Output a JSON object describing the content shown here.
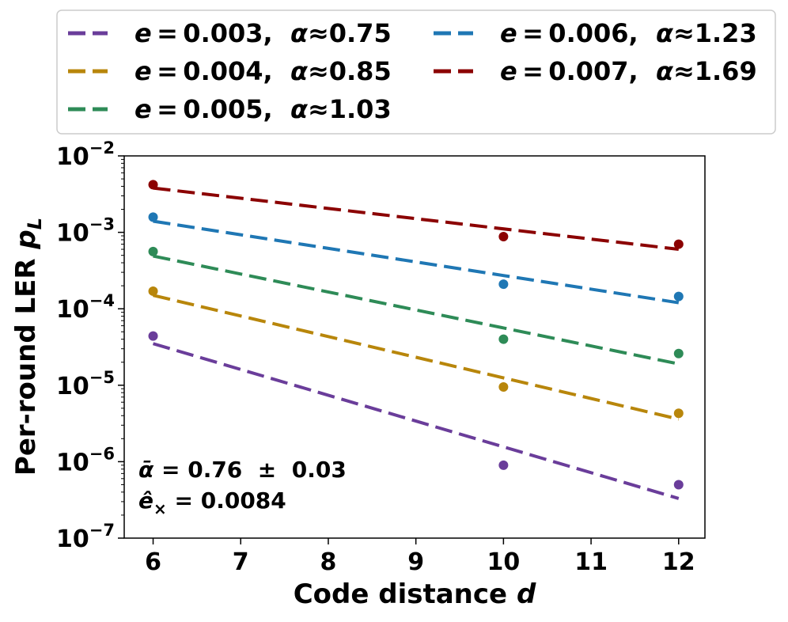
{
  "chart_data": {
    "type": "scatter",
    "xlabel": {
      "text": "Code distance ",
      "var": "d"
    },
    "ylabel": {
      "text": "Per-round LER ",
      "var": "p",
      "sub": "L"
    },
    "xlim": [
      5.67,
      12.3
    ],
    "ylim": [
      1e-07,
      0.01
    ],
    "yscale": "log",
    "x_ticks": [
      "6",
      "7",
      "8",
      "9",
      "10",
      "11",
      "12"
    ],
    "x_tick_values": [
      6,
      7,
      8,
      9,
      10,
      11,
      12
    ],
    "y_ticks": [
      {
        "base": "10",
        "exp": "−2",
        "value": 0.01
      },
      {
        "base": "10",
        "exp": "−3",
        "value": 0.001
      },
      {
        "base": "10",
        "exp": "−4",
        "value": 0.0001
      },
      {
        "base": "10",
        "exp": "−5",
        "value": 1e-05
      },
      {
        "base": "10",
        "exp": "−6",
        "value": 1e-06
      },
      {
        "base": "10",
        "exp": "−7",
        "value": 1e-07
      }
    ],
    "grid": false,
    "legend_position": "top (outside, above axes)",
    "series": [
      {
        "name": "e = 0.003, α≈0.75",
        "e_label": "e",
        "e_value": "0.003",
        "alpha_label": "α",
        "alpha_value": "0.75",
        "color": "#6a3d9a",
        "x": [
          6,
          10,
          12
        ],
        "points": [
          4.4e-05,
          9e-07,
          5e-07
        ],
        "fit": [
          3.5e-05,
          3.3e-07
        ]
      },
      {
        "name": "e = 0.004, α≈0.85",
        "e_label": "e",
        "e_value": "0.004",
        "alpha_label": "α",
        "alpha_value": "0.85",
        "color": "#b8860b",
        "x": [
          6,
          10,
          12
        ],
        "points": [
          0.00017,
          9.5e-06,
          4.3e-06
        ],
        "fit": [
          0.00015,
          3.6e-06
        ]
      },
      {
        "name": "e = 0.005, α≈1.03",
        "e_label": "e",
        "e_value": "0.005",
        "alpha_label": "α",
        "alpha_value": "1.03",
        "color": "#2e8b57",
        "x": [
          6,
          10,
          12
        ],
        "points": [
          0.00056,
          4e-05,
          2.6e-05
        ],
        "fit": [
          0.00049,
          1.9e-05
        ]
      },
      {
        "name": "e = 0.006, α≈1.23",
        "e_label": "e",
        "e_value": "0.006",
        "alpha_label": "α",
        "alpha_value": "1.23",
        "color": "#1f77b4",
        "x": [
          6,
          10,
          12
        ],
        "points": [
          0.00158,
          0.00021,
          0.000145
        ],
        "fit": [
          0.0014,
          0.00012
        ]
      },
      {
        "name": "e = 0.007, α≈1.69",
        "e_label": "e",
        "e_value": "0.007",
        "alpha_label": "α",
        "alpha_value": "1.69",
        "color": "#8b0000",
        "x": [
          6,
          10,
          12
        ],
        "points": [
          0.0042,
          0.00088,
          0.0007
        ],
        "fit": [
          0.0038,
          0.0006
        ]
      }
    ],
    "annotations": [
      {
        "symbol": "ᾱ",
        "text": " = 0.76  ±  0.03"
      },
      {
        "symbol": "ê",
        "sub": "×",
        "text": " = 0.0084"
      }
    ]
  }
}
